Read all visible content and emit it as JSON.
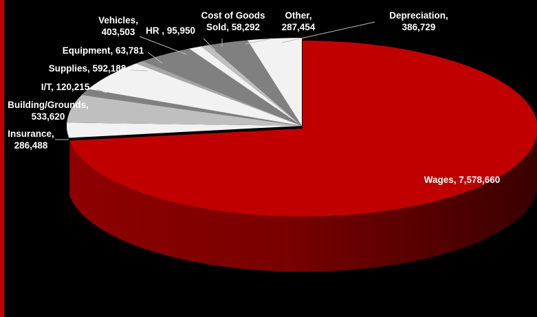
{
  "chart_data": {
    "type": "pie",
    "style": "3d-exploded",
    "legend": "none",
    "slices": [
      {
        "label": "Wages",
        "value": 7578660,
        "display": "7,578,660",
        "color": "#c00000"
      },
      {
        "label": "Insurance",
        "value": 286488,
        "display": "286,488",
        "color": "#f2f2f2"
      },
      {
        "label": "Building/Grounds",
        "value": 533620,
        "display": "533,620",
        "color": "#bfbfbf"
      },
      {
        "label": "I/T",
        "value": 120215,
        "display": "120,215",
        "color": "#808080"
      },
      {
        "label": "Supplies",
        "value": 592188,
        "display": "592,188",
        "color": "#f2f2f2"
      },
      {
        "label": "Equipment",
        "value": 63781,
        "display": "63,781",
        "color": "#a6a6a6"
      },
      {
        "label": "Vehicles",
        "value": 403503,
        "display": "403,503",
        "color": "#808080"
      },
      {
        "label": "HR ",
        "value": 95950,
        "display": "95,950",
        "color": "#f2f2f2"
      },
      {
        "label": "Cost of Goods Sold",
        "value": 58292,
        "display": "58,292",
        "color": "#bfbfbf"
      },
      {
        "label": "Other",
        "value": 287454,
        "display": "287,454",
        "color": "#808080"
      },
      {
        "label": "Depreciation",
        "value": 386729,
        "display": "386,729",
        "color": "#f2f2f2"
      }
    ]
  }
}
